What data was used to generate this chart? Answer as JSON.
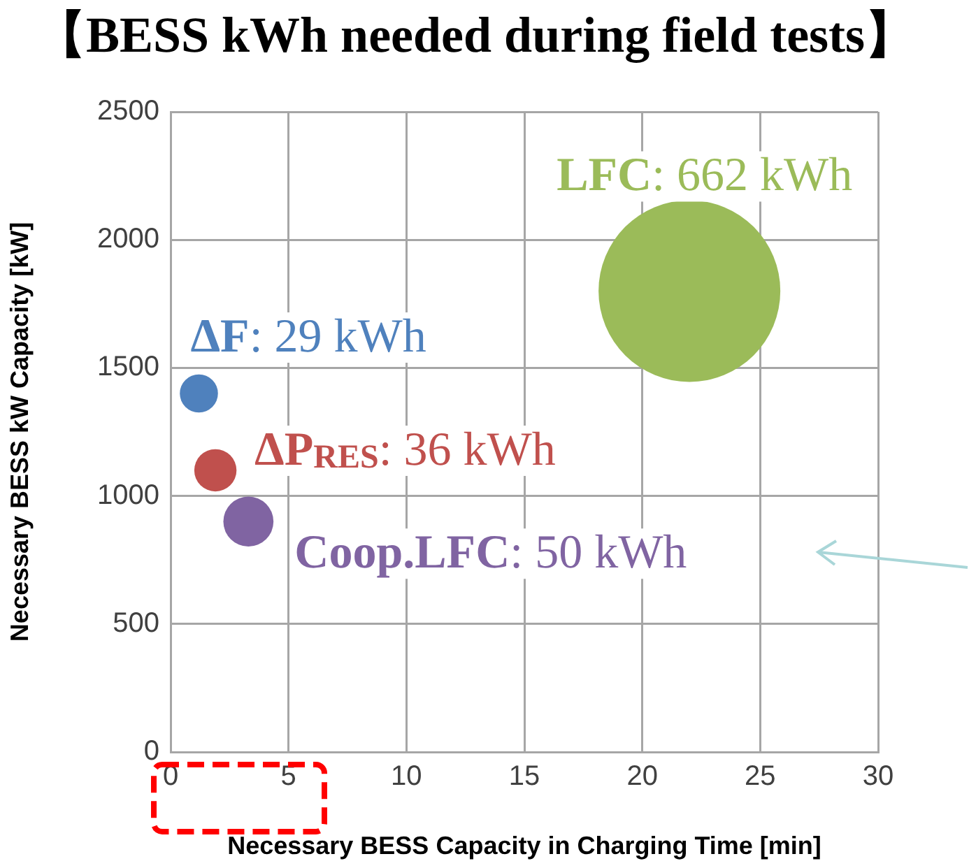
{
  "chart_data": {
    "type": "bubble",
    "title": "【BESS kWh needed during field tests】",
    "xlabel": "Necessary BESS Capacity in Charging Time [min]",
    "ylabel": "Necessary BESS kW Capacity [kW]",
    "xlim": [
      0,
      30
    ],
    "xticks": [
      0,
      5,
      10,
      15,
      20,
      25,
      30
    ],
    "ylim": [
      0,
      2500
    ],
    "yticks": [
      0,
      500,
      1000,
      1500,
      2000,
      2500
    ],
    "grid": true,
    "series": [
      {
        "name": "ΔF: 29 kWh",
        "color": "#4f81bd",
        "x": [
          1.2
        ],
        "values": [
          1400
        ],
        "sizes": [
          0.044
        ]
      },
      {
        "name": "ΔP$_{RES}$: 36 kWh",
        "color": "#c0504d",
        "x": [
          1.9
        ],
        "values": [
          1100
        ],
        "sizes": [
          0.054
        ]
      },
      {
        "name": "Coop.LFC: 50 kWh",
        "color": "#8064a2",
        "x": [
          3.3
        ],
        "values": [
          900
        ],
        "sizes": [
          0.076
        ]
      },
      {
        "name": "LFC: 662 kWh",
        "color": "#9bbb59",
        "x": [
          22
        ],
        "values": [
          1800
        ],
        "sizes": [
          1
        ]
      }
    ]
  }
}
